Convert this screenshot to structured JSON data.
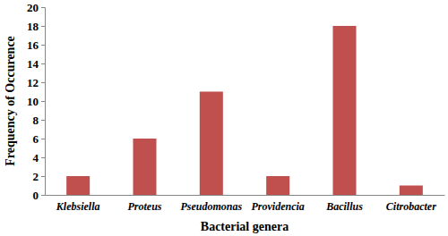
{
  "chart_data": {
    "type": "bar",
    "categories": [
      "Klebsiella",
      "Proteus",
      "Pseudomonas",
      "Providencia",
      "Bacillus",
      "Citrobacter"
    ],
    "values": [
      2,
      6,
      11,
      2,
      18,
      1
    ],
    "color": "#c0504d",
    "x_label": "Bacterial genera",
    "y_label": "Frequency of Occurence",
    "ylim": [
      0,
      20
    ],
    "yticks": [
      0,
      2,
      4,
      6,
      8,
      10,
      12,
      14,
      16,
      18,
      20
    ],
    "grid": false
  }
}
